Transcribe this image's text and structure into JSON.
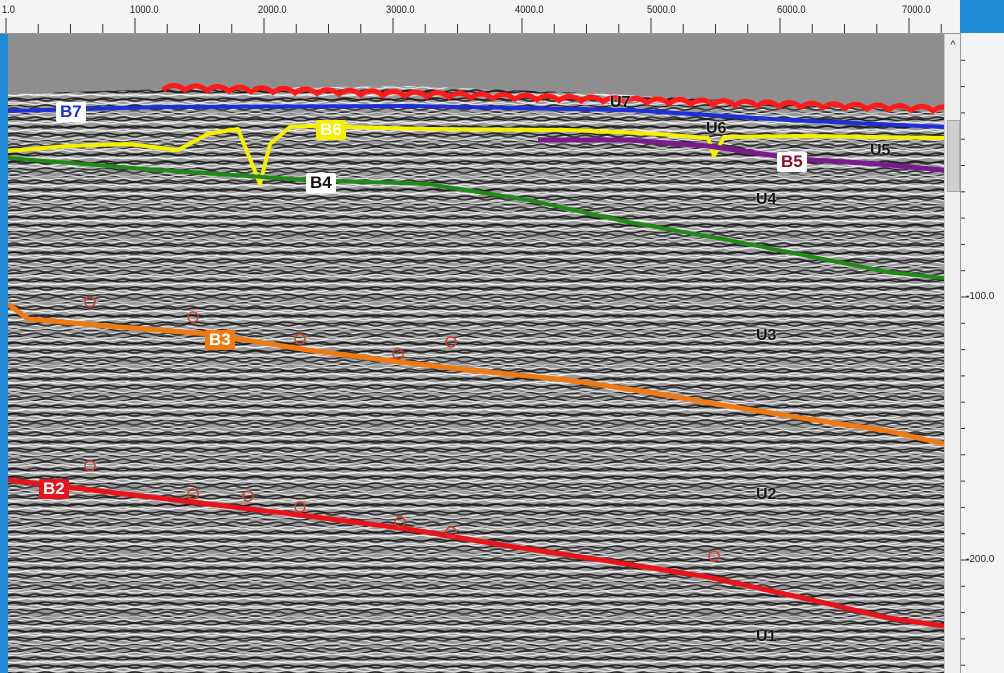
{
  "top_axis": {
    "labels": [
      {
        "text": "1.0",
        "value": 1
      },
      {
        "text": "1000.0",
        "value": 1000
      },
      {
        "text": "2000.0",
        "value": 2000
      },
      {
        "text": "3000.0",
        "value": 3000
      },
      {
        "text": "4000.0",
        "value": 4000
      },
      {
        "text": "5000.0",
        "value": 5000
      },
      {
        "text": "6000.0",
        "value": 6000
      },
      {
        "text": "7000.0",
        "value": 7000
      }
    ]
  },
  "right_axis": {
    "labels": [
      {
        "text": "-100.0",
        "value": -100
      },
      {
        "text": "-200.0",
        "value": -200
      }
    ]
  },
  "scrollbar": {
    "up_glyph": "^"
  },
  "horizons": [
    {
      "id": "B7",
      "label": "B7",
      "color": "#1d2fd6",
      "label_bg": "#ffffff",
      "label_fg": "#1d2fd6"
    },
    {
      "id": "B6",
      "label": "B6",
      "color": "#f5f000",
      "label_bg": "#f5f000",
      "label_fg": "#ffffff"
    },
    {
      "id": "B5",
      "label": "B5",
      "color": "#7a1a8c",
      "label_bg": "#ffffff",
      "label_fg": "#8a0d2a"
    },
    {
      "id": "B4",
      "label": "B4",
      "color": "#1f8a17",
      "label_bg": "#ffffff",
      "label_fg": "#111111"
    },
    {
      "id": "B3",
      "label": "B3",
      "color": "#f07a12",
      "label_bg": "#f07a12",
      "label_fg": "#ffffff"
    },
    {
      "id": "B2",
      "label": "B2",
      "color": "#e8141b",
      "label_bg": "#e8141b",
      "label_fg": "#ffffff"
    },
    {
      "id": "seafloor",
      "color": "#ff1a1a"
    }
  ],
  "units": [
    "U7",
    "U6",
    "U5",
    "U4",
    "U3",
    "U2",
    "U1"
  ],
  "colors": {
    "background": "#1f8ad8",
    "water": "#8a8a8a"
  }
}
